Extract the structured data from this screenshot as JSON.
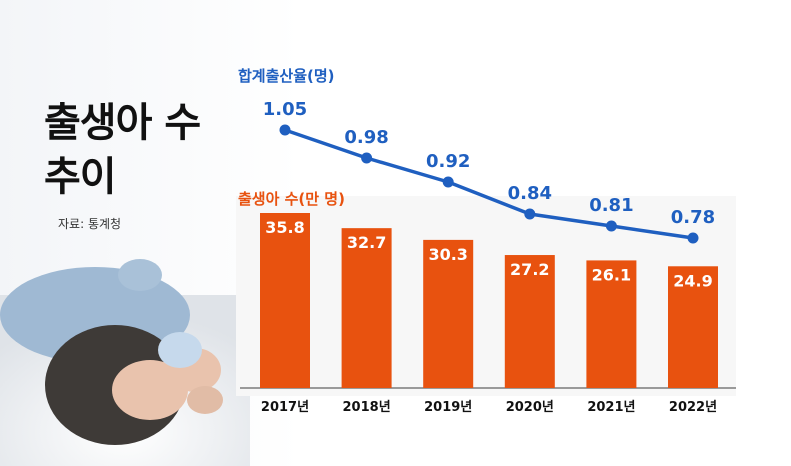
{
  "page": {
    "title_line1": "출생아 수",
    "title_line2": "추이",
    "source": "자료: 통계청"
  },
  "colors": {
    "line": "#1f5fc0",
    "bar": "#e8520f",
    "bar_label": "#ffffff",
    "line_label": "#1f5fc0",
    "bar_title": "#e8520f"
  },
  "chart_data": [
    {
      "type": "line",
      "title": "합계출산율(명)",
      "categories": [
        "2017년",
        "2018년",
        "2019년",
        "2020년",
        "2021년",
        "2022년"
      ],
      "values": [
        1.05,
        0.98,
        0.92,
        0.84,
        0.81,
        0.78
      ],
      "labels": [
        "1.05",
        "0.98",
        "0.92",
        "0.84",
        "0.81",
        "0.78"
      ]
    },
    {
      "type": "bar",
      "title": "출생아 수(만 명)",
      "categories": [
        "2017년",
        "2018년",
        "2019년",
        "2020년",
        "2021년",
        "2022년"
      ],
      "values": [
        35.8,
        32.7,
        30.3,
        27.2,
        26.1,
        24.9
      ],
      "labels": [
        "35.8",
        "32.7",
        "30.3",
        "27.2",
        "26.1",
        "24.9"
      ]
    }
  ]
}
